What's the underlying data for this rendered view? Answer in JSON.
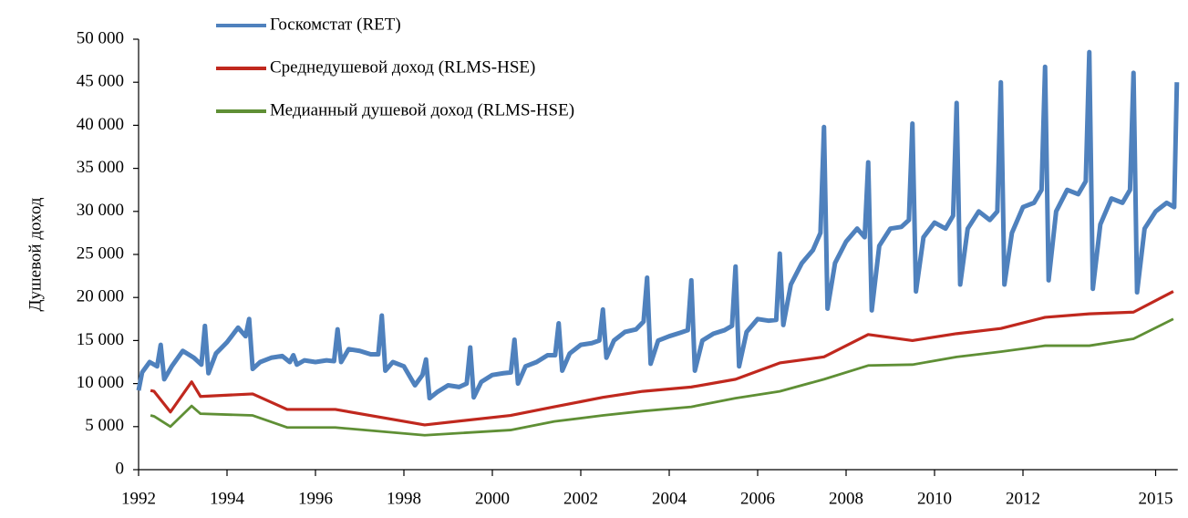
{
  "chart_data": {
    "type": "line",
    "y_label": "Душевой доход",
    "xlim": [
      1992,
      2015.5
    ],
    "xticks": [
      1992,
      1994,
      1996,
      1998,
      2000,
      2002,
      2004,
      2006,
      2008,
      2010,
      2012,
      2015
    ],
    "ylim": [
      0,
      50000
    ],
    "yticks": [
      0,
      {
        "value": 5000,
        "label": "5 000"
      },
      {
        "value": 10000,
        "label": "10 000"
      },
      {
        "value": 15000,
        "label": "15 000"
      },
      {
        "value": 20000,
        "label": "20 000"
      },
      {
        "value": 25000,
        "label": "25 000"
      },
      {
        "value": 30000,
        "label": "30 000"
      },
      {
        "value": 35000,
        "label": "35 000"
      },
      {
        "value": 40000,
        "label": "40 000"
      },
      {
        "value": 45000,
        "label": "45 000"
      },
      {
        "value": 50000,
        "label": "50 000"
      }
    ],
    "grid": false,
    "legend": "top-left",
    "series": [
      {
        "name": "Госкомстат (RET)",
        "color": "#4f81bd",
        "x": [
          1992,
          1992.08,
          1992.25,
          1992.42,
          1992.5,
          1992.58,
          1992.75,
          1993,
          1993.25,
          1993.42,
          1993.5,
          1993.58,
          1993.75,
          1994,
          1994.25,
          1994.42,
          1994.5,
          1994.58,
          1994.75,
          1995,
          1995.25,
          1995.42,
          1995.5,
          1995.58,
          1995.75,
          1996,
          1996.25,
          1996.42,
          1996.5,
          1996.58,
          1996.75,
          1997,
          1997.25,
          1997.42,
          1997.5,
          1997.58,
          1997.75,
          1998,
          1998.25,
          1998.42,
          1998.5,
          1998.58,
          1998.75,
          1999,
          1999.25,
          1999.42,
          1999.5,
          1999.58,
          1999.75,
          2000,
          2000.25,
          2000.42,
          2000.5,
          2000.58,
          2000.75,
          2001,
          2001.25,
          2001.42,
          2001.5,
          2001.58,
          2001.75,
          2002,
          2002.25,
          2002.42,
          2002.5,
          2002.58,
          2002.75,
          2003,
          2003.25,
          2003.42,
          2003.5,
          2003.58,
          2003.75,
          2004,
          2004.25,
          2004.42,
          2004.5,
          2004.58,
          2004.75,
          2005,
          2005.25,
          2005.42,
          2005.5,
          2005.58,
          2005.75,
          2006,
          2006.25,
          2006.42,
          2006.5,
          2006.58,
          2006.75,
          2007,
          2007.25,
          2007.42,
          2007.5,
          2007.58,
          2007.75,
          2008,
          2008.25,
          2008.42,
          2008.5,
          2008.58,
          2008.75,
          2009,
          2009.25,
          2009.42,
          2009.5,
          2009.58,
          2009.75,
          2010,
          2010.25,
          2010.42,
          2010.5,
          2010.58,
          2010.75,
          2011,
          2011.25,
          2011.42,
          2011.5,
          2011.58,
          2011.75,
          2012,
          2012.25,
          2012.42,
          2012.5,
          2012.58,
          2012.75,
          2013,
          2013.25,
          2013.42,
          2013.5,
          2013.58,
          2013.75,
          2014,
          2014.25,
          2014.42,
          2014.5,
          2014.58,
          2014.75,
          2015,
          2015.25,
          2015.42,
          2015.48
        ],
        "values": [
          9200,
          11300,
          12500,
          12000,
          14500,
          10500,
          12000,
          13800,
          13000,
          12200,
          16700,
          11200,
          13500,
          14800,
          16500,
          15500,
          17500,
          11700,
          12500,
          13000,
          13200,
          12500,
          13300,
          12200,
          12700,
          12500,
          12700,
          12600,
          16300,
          12500,
          14000,
          13800,
          13400,
          13400,
          17900,
          11500,
          12500,
          12000,
          9800,
          11000,
          12800,
          8300,
          9000,
          9800,
          9600,
          10000,
          14200,
          8400,
          10200,
          11000,
          11200,
          11300,
          15100,
          10000,
          12000,
          12500,
          13300,
          13300,
          17000,
          11500,
          13500,
          14500,
          14700,
          15000,
          18600,
          13000,
          15000,
          16000,
          16300,
          17200,
          22300,
          12300,
          15000,
          15500,
          15900,
          16200,
          22000,
          11500,
          15000,
          15800,
          16200,
          16700,
          23600,
          12000,
          16000,
          17500,
          17300,
          17400,
          25100,
          16800,
          21500,
          24000,
          25500,
          27500,
          39800,
          18700,
          24000,
          26500,
          28000,
          27000,
          35700,
          18500,
          26000,
          28000,
          28200,
          29000,
          40200,
          20700,
          27000,
          28700,
          28000,
          29500,
          42600,
          21500,
          28000,
          30000,
          29000,
          30000,
          45000,
          21500,
          27500,
          30500,
          31000,
          32500,
          46800,
          22000,
          30000,
          32500,
          32000,
          33500,
          48500,
          21000,
          28500,
          31500,
          31000,
          32500,
          46100,
          20600,
          28000,
          30000,
          31000,
          30500,
          45000
        ]
      },
      {
        "name": "Среднедушевой доход (RLMS-HSE)",
        "color": "#c0281e",
        "x": [
          1992.27,
          1992.35,
          1992.72,
          1993.2,
          1993.4,
          1994.58,
          1995.36,
          1996.45,
          1998.47,
          2000.41,
          2001.4,
          2002.5,
          2003.4,
          2004.5,
          2005.5,
          2006.5,
          2007.5,
          2008.5,
          2009.5,
          2010.5,
          2011.5,
          2012.5,
          2013.5,
          2014.5,
          2015.4
        ],
        "values": [
          9200,
          9100,
          6700,
          10200,
          8500,
          8800,
          7000,
          7000,
          5200,
          6300,
          7300,
          8400,
          9100,
          9600,
          10500,
          12400,
          13100,
          15700,
          15000,
          15800,
          16400,
          17700,
          18100,
          18300,
          20700
        ]
      },
      {
        "name": "Медианный душевой доход (RLMS-HSE)",
        "color": "#5f8f35",
        "x": [
          1992.27,
          1992.35,
          1992.72,
          1993.2,
          1993.4,
          1994.58,
          1995.36,
          1996.45,
          1998.47,
          2000.41,
          2001.4,
          2002.5,
          2003.4,
          2004.5,
          2005.5,
          2006.5,
          2007.5,
          2008.5,
          2009.5,
          2010.5,
          2011.5,
          2012.5,
          2013.5,
          2014.5,
          2015.4
        ],
        "values": [
          6300,
          6200,
          5000,
          7400,
          6500,
          6300,
          4900,
          4900,
          4000,
          4600,
          5600,
          6300,
          6800,
          7300,
          8300,
          9100,
          10500,
          12100,
          12200,
          13100,
          13700,
          14400,
          14400,
          15200,
          17500
        ]
      }
    ]
  }
}
